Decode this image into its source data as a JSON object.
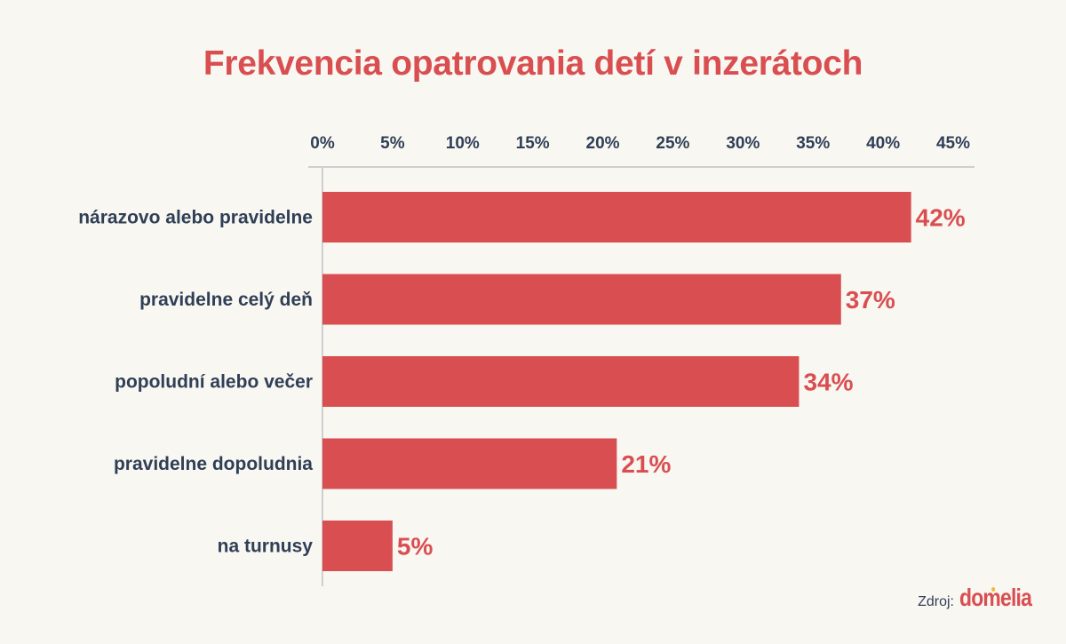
{
  "chart_data": {
    "type": "bar",
    "orientation": "horizontal",
    "title": "Frekvencia opatrovania detí v inzerátoch",
    "categories": [
      "nárazovo alebo pravidelne",
      "pravidelne celý deň",
      "popoludní alebo večer",
      "pravidelne dopoludnia",
      "na turnusy"
    ],
    "values": [
      42,
      37,
      34,
      21,
      5
    ],
    "value_labels": [
      "42%",
      "37%",
      "34%",
      "21%",
      "5%"
    ],
    "xlim": [
      0,
      45
    ],
    "x_ticks": [
      0,
      5,
      10,
      15,
      20,
      25,
      30,
      35,
      40,
      45
    ],
    "x_tick_labels": [
      "0%",
      "5%",
      "10%",
      "15%",
      "20%",
      "25%",
      "30%",
      "35%",
      "40%",
      "45%"
    ],
    "axis_position": "top",
    "grid": false,
    "legend": "none",
    "bar_color": "#d94f51",
    "text_color": "#2f3f56"
  },
  "source": {
    "label": "Zdroj:",
    "logo_text": "domelia"
  }
}
